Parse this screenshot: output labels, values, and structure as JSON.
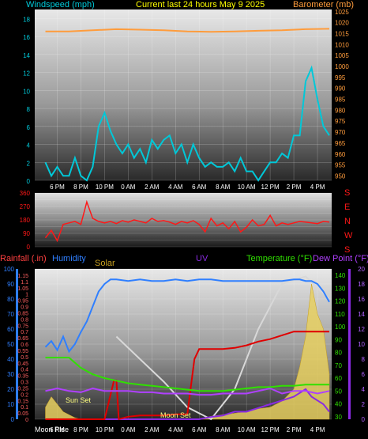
{
  "header": {
    "left_label": "Windspeed (mph)",
    "center_label": "Current last 24 hours May 9 2025",
    "right_label": "Barometer (mb)"
  },
  "colors": {
    "windspeed": "#00c8d8",
    "barometer": "#ff9c3c",
    "direction": "#ff1818",
    "rainfall": "#ff4040",
    "humidity": "#2f7fff",
    "solar": "#c8a020",
    "uv": "#8a2be2",
    "temperature": "#30e000",
    "dewpoint": "#b040ff",
    "title": "#ffff00"
  },
  "chart_data": [
    {
      "type": "line",
      "title": "Current last 24 hours May 9 2025",
      "x_ticks": [
        "6 PM",
        "8 PM",
        "10 PM",
        "0 AM",
        "2 AM",
        "4 AM",
        "6 AM",
        "8 AM",
        "10 AM",
        "12 PM",
        "2 PM",
        "4 PM"
      ],
      "y_left": {
        "label": "Windspeed (mph)",
        "ticks": [
          0,
          2,
          4,
          6,
          8,
          10,
          12,
          14,
          16,
          18
        ],
        "range": [
          0,
          19
        ]
      },
      "y_right": {
        "label": "Barometer (mb)",
        "ticks": [
          950,
          955,
          960,
          965,
          970,
          975,
          980,
          985,
          990,
          995,
          1000,
          1005,
          1010,
          1015,
          1020,
          1025
        ],
        "range": [
          948,
          1026
        ]
      },
      "series": [
        {
          "name": "Windspeed (mph)",
          "axis": "left",
          "x": [
            17,
            17.5,
            18,
            18.5,
            19,
            19.5,
            20,
            20.5,
            21,
            21.5,
            22,
            22.5,
            23,
            23.5,
            24,
            24.5,
            25,
            25.5,
            26,
            26.5,
            27,
            27.5,
            28,
            28.5,
            29,
            29.5,
            30,
            30.5,
            31,
            31.5,
            32,
            32.5,
            33,
            33.5,
            34,
            34.5,
            35,
            35.5,
            36,
            36.5,
            37,
            37.5,
            38,
            38.5,
            39,
            39.5,
            40,
            40.5,
            41
          ],
          "values": [
            2,
            0.5,
            1.5,
            0.5,
            0.5,
            2.5,
            0.5,
            0,
            1.5,
            6,
            7.5,
            5.5,
            4,
            3,
            4,
            2.5,
            3.5,
            2,
            4.5,
            3.5,
            4.5,
            5,
            3,
            4,
            2,
            4,
            2.5,
            1.5,
            2,
            1.5,
            1.5,
            2,
            1,
            2.5,
            1,
            1,
            0,
            1,
            2,
            2,
            3,
            2.5,
            5,
            5,
            11,
            12.5,
            9,
            6,
            5
          ]
        },
        {
          "name": "Barometer (mb)",
          "axis": "right",
          "x": [
            17,
            19,
            21,
            23,
            25,
            27,
            29,
            31,
            33,
            35,
            37,
            39,
            41
          ],
          "values": [
            1016,
            1016,
            1016.5,
            1017,
            1016.8,
            1016.5,
            1016,
            1015.8,
            1016,
            1016.3,
            1016.5,
            1017,
            1017.2
          ]
        }
      ]
    },
    {
      "type": "line",
      "title": "",
      "y_ticks": [
        0,
        45,
        90,
        135,
        180,
        225,
        270,
        315,
        360
      ],
      "y_range": [
        0,
        360
      ],
      "y_right_labels": [
        "S",
        "E",
        "N",
        "W",
        "S"
      ],
      "series": [
        {
          "name": "Wind direction",
          "x": [
            17,
            17.5,
            18,
            18.5,
            19,
            19.5,
            20,
            20.5,
            21,
            21.5,
            22,
            22.5,
            23,
            23.5,
            24,
            24.5,
            25,
            25.5,
            26,
            26.5,
            27,
            27.5,
            28,
            28.5,
            29,
            29.5,
            30,
            30.5,
            31,
            31.5,
            32,
            32.5,
            33,
            33.5,
            34,
            34.5,
            35,
            35.5,
            36,
            36.5,
            37,
            37.5,
            38,
            38.5,
            39,
            39.5,
            40,
            40.5,
            41
          ],
          "values": [
            60,
            110,
            40,
            150,
            160,
            170,
            150,
            300,
            190,
            170,
            160,
            170,
            155,
            175,
            165,
            180,
            170,
            160,
            190,
            170,
            175,
            165,
            150,
            170,
            160,
            175,
            150,
            100,
            190,
            140,
            160,
            120,
            170,
            100,
            130,
            180,
            140,
            150,
            210,
            140,
            160,
            150,
            160,
            170,
            165,
            160,
            155,
            170,
            165
          ]
        }
      ]
    },
    {
      "type": "line",
      "title": "",
      "x_ticks": [
        "6 PM",
        "8 PM",
        "10 PM",
        "0 AM",
        "2 AM",
        "4 AM",
        "6 AM",
        "8 AM",
        "10 AM",
        "12 PM",
        "2 PM",
        "4 PM"
      ],
      "header_labels": [
        "Rainfall (.in)",
        "Humidity",
        "Solar",
        "UV",
        "Temperature (°F)",
        "Dew Point (°F)"
      ],
      "axis_humidity": {
        "ticks": [
          0,
          10,
          20,
          30,
          40,
          50,
          60,
          70,
          80,
          90,
          100
        ],
        "range": [
          0,
          100
        ]
      },
      "axis_rainfall": {
        "ticks": [
          0,
          0.05,
          0.1,
          0.15,
          0.2,
          0.25,
          0.3,
          0.35,
          0.4,
          0.45,
          0.5,
          0.55,
          0.6,
          0.65,
          0.7,
          0.75,
          0.8,
          0.85,
          0.9,
          0.95,
          1,
          1.05,
          1.1,
          1.15
        ],
        "tick_labels": [
          "0",
          "0.05",
          "0.1",
          "0.15",
          "0.2",
          "0.25",
          "0.3",
          "0.35",
          "0.4",
          "0.45",
          "0.5",
          "0.55",
          "0.6",
          "0.65",
          "0.7",
          "0.75",
          "0.8",
          "0.85",
          "0.9",
          "0.95",
          "1",
          "1.05",
          "1.1",
          "1.15"
        ],
        "range": [
          0,
          1.2
        ]
      },
      "axis_temperature": {
        "ticks": [
          30,
          40,
          50,
          60,
          70,
          80,
          90,
          100,
          110,
          120,
          130,
          140
        ],
        "range": [
          28,
          145
        ]
      },
      "axis_uv": {
        "ticks": [
          0,
          2,
          4,
          6,
          8,
          10,
          12,
          14,
          16,
          18,
          20
        ],
        "range": [
          0,
          20
        ]
      },
      "annotations": [
        "Sun Set",
        "Moon Set",
        "Moon Rise"
      ],
      "series": [
        {
          "name": "Humidity",
          "axis": "humidity",
          "x": [
            17,
            17.5,
            18,
            18.5,
            19,
            19.5,
            20,
            20.5,
            21,
            21.5,
            22,
            22.5,
            23,
            24,
            25,
            26,
            27,
            28,
            29,
            30,
            31,
            32,
            33,
            34,
            35,
            36,
            37,
            38,
            38.5,
            39,
            39.5,
            40,
            40.5,
            41
          ],
          "values": [
            48,
            52,
            46,
            55,
            45,
            50,
            58,
            65,
            75,
            85,
            90,
            93,
            93,
            92,
            93,
            92,
            92,
            93,
            92,
            93,
            93,
            92,
            92,
            92,
            92,
            92,
            92,
            93,
            93,
            92,
            92,
            90,
            85,
            78
          ]
        },
        {
          "name": "Temperature (°F)",
          "axis": "temperature",
          "x": [
            17,
            18,
            19,
            20,
            21,
            22,
            23,
            24,
            25,
            26,
            27,
            28,
            29,
            30,
            31,
            32,
            33,
            34,
            35,
            36,
            37,
            38,
            39,
            40,
            41
          ],
          "values": [
            76,
            76,
            76,
            68,
            63,
            60,
            58,
            56,
            55,
            54,
            53,
            52,
            51,
            50,
            50,
            50,
            51,
            52,
            53,
            53,
            54,
            54,
            55,
            55,
            55
          ]
        },
        {
          "name": "Dew Point (°F)",
          "axis": "temperature",
          "x": [
            17,
            18,
            19,
            20,
            21,
            22,
            23,
            24,
            25,
            26,
            27,
            28,
            29,
            30,
            31,
            32,
            33,
            34,
            35,
            36,
            37,
            38,
            39,
            40,
            41
          ],
          "values": [
            50,
            52,
            50,
            49,
            52,
            50,
            50,
            50,
            49,
            49,
            48,
            48,
            48,
            47,
            47,
            48,
            48,
            48,
            50,
            52,
            48,
            50,
            50,
            48,
            50
          ]
        },
        {
          "name": "Rainfall (.in)",
          "axis": "rainfall",
          "x": [
            17,
            21,
            22,
            22.8,
            23,
            23.2,
            24,
            25,
            26,
            27,
            28,
            29,
            29.6,
            30,
            32,
            33,
            34,
            35,
            36,
            37,
            38,
            39,
            40,
            41
          ],
          "values": [
            0,
            0,
            0,
            0.31,
            0.31,
            0,
            0.02,
            0.03,
            0.03,
            0.03,
            0.04,
            0.04,
            0.48,
            0.56,
            0.56,
            0.57,
            0.59,
            0.62,
            0.64,
            0.67,
            0.7,
            0.7,
            0.7,
            0.7
          ]
        },
        {
          "name": "Solar",
          "axis": "humidity",
          "x": [
            17,
            17.5,
            18,
            18.5,
            19,
            19.5,
            20,
            30,
            31,
            32,
            33,
            34,
            35,
            36,
            37,
            38,
            38.5,
            39,
            39.5,
            40,
            40.5,
            41
          ],
          "values": [
            8,
            15,
            10,
            5,
            3,
            1,
            0,
            0,
            2,
            3,
            4,
            5,
            7,
            8,
            12,
            20,
            35,
            55,
            90,
            70,
            60,
            30
          ]
        },
        {
          "name": "UV",
          "axis": "uv",
          "x": [
            17,
            30,
            31,
            32,
            33,
            34,
            35,
            36,
            37,
            38,
            39,
            39.5,
            40,
            40.5,
            41
          ],
          "values": [
            0,
            0,
            0.3,
            0.5,
            1,
            1,
            1.5,
            2,
            2.5,
            3,
            4,
            3,
            2.5,
            2,
            1
          ]
        },
        {
          "name": "Moon",
          "axis": "humidity",
          "x": [
            23,
            25,
            27,
            29,
            31,
            33,
            35,
            37,
            39,
            41
          ],
          "values": [
            55,
            40,
            25,
            8,
            0,
            20,
            60,
            90,
            95,
            80
          ]
        }
      ]
    }
  ]
}
